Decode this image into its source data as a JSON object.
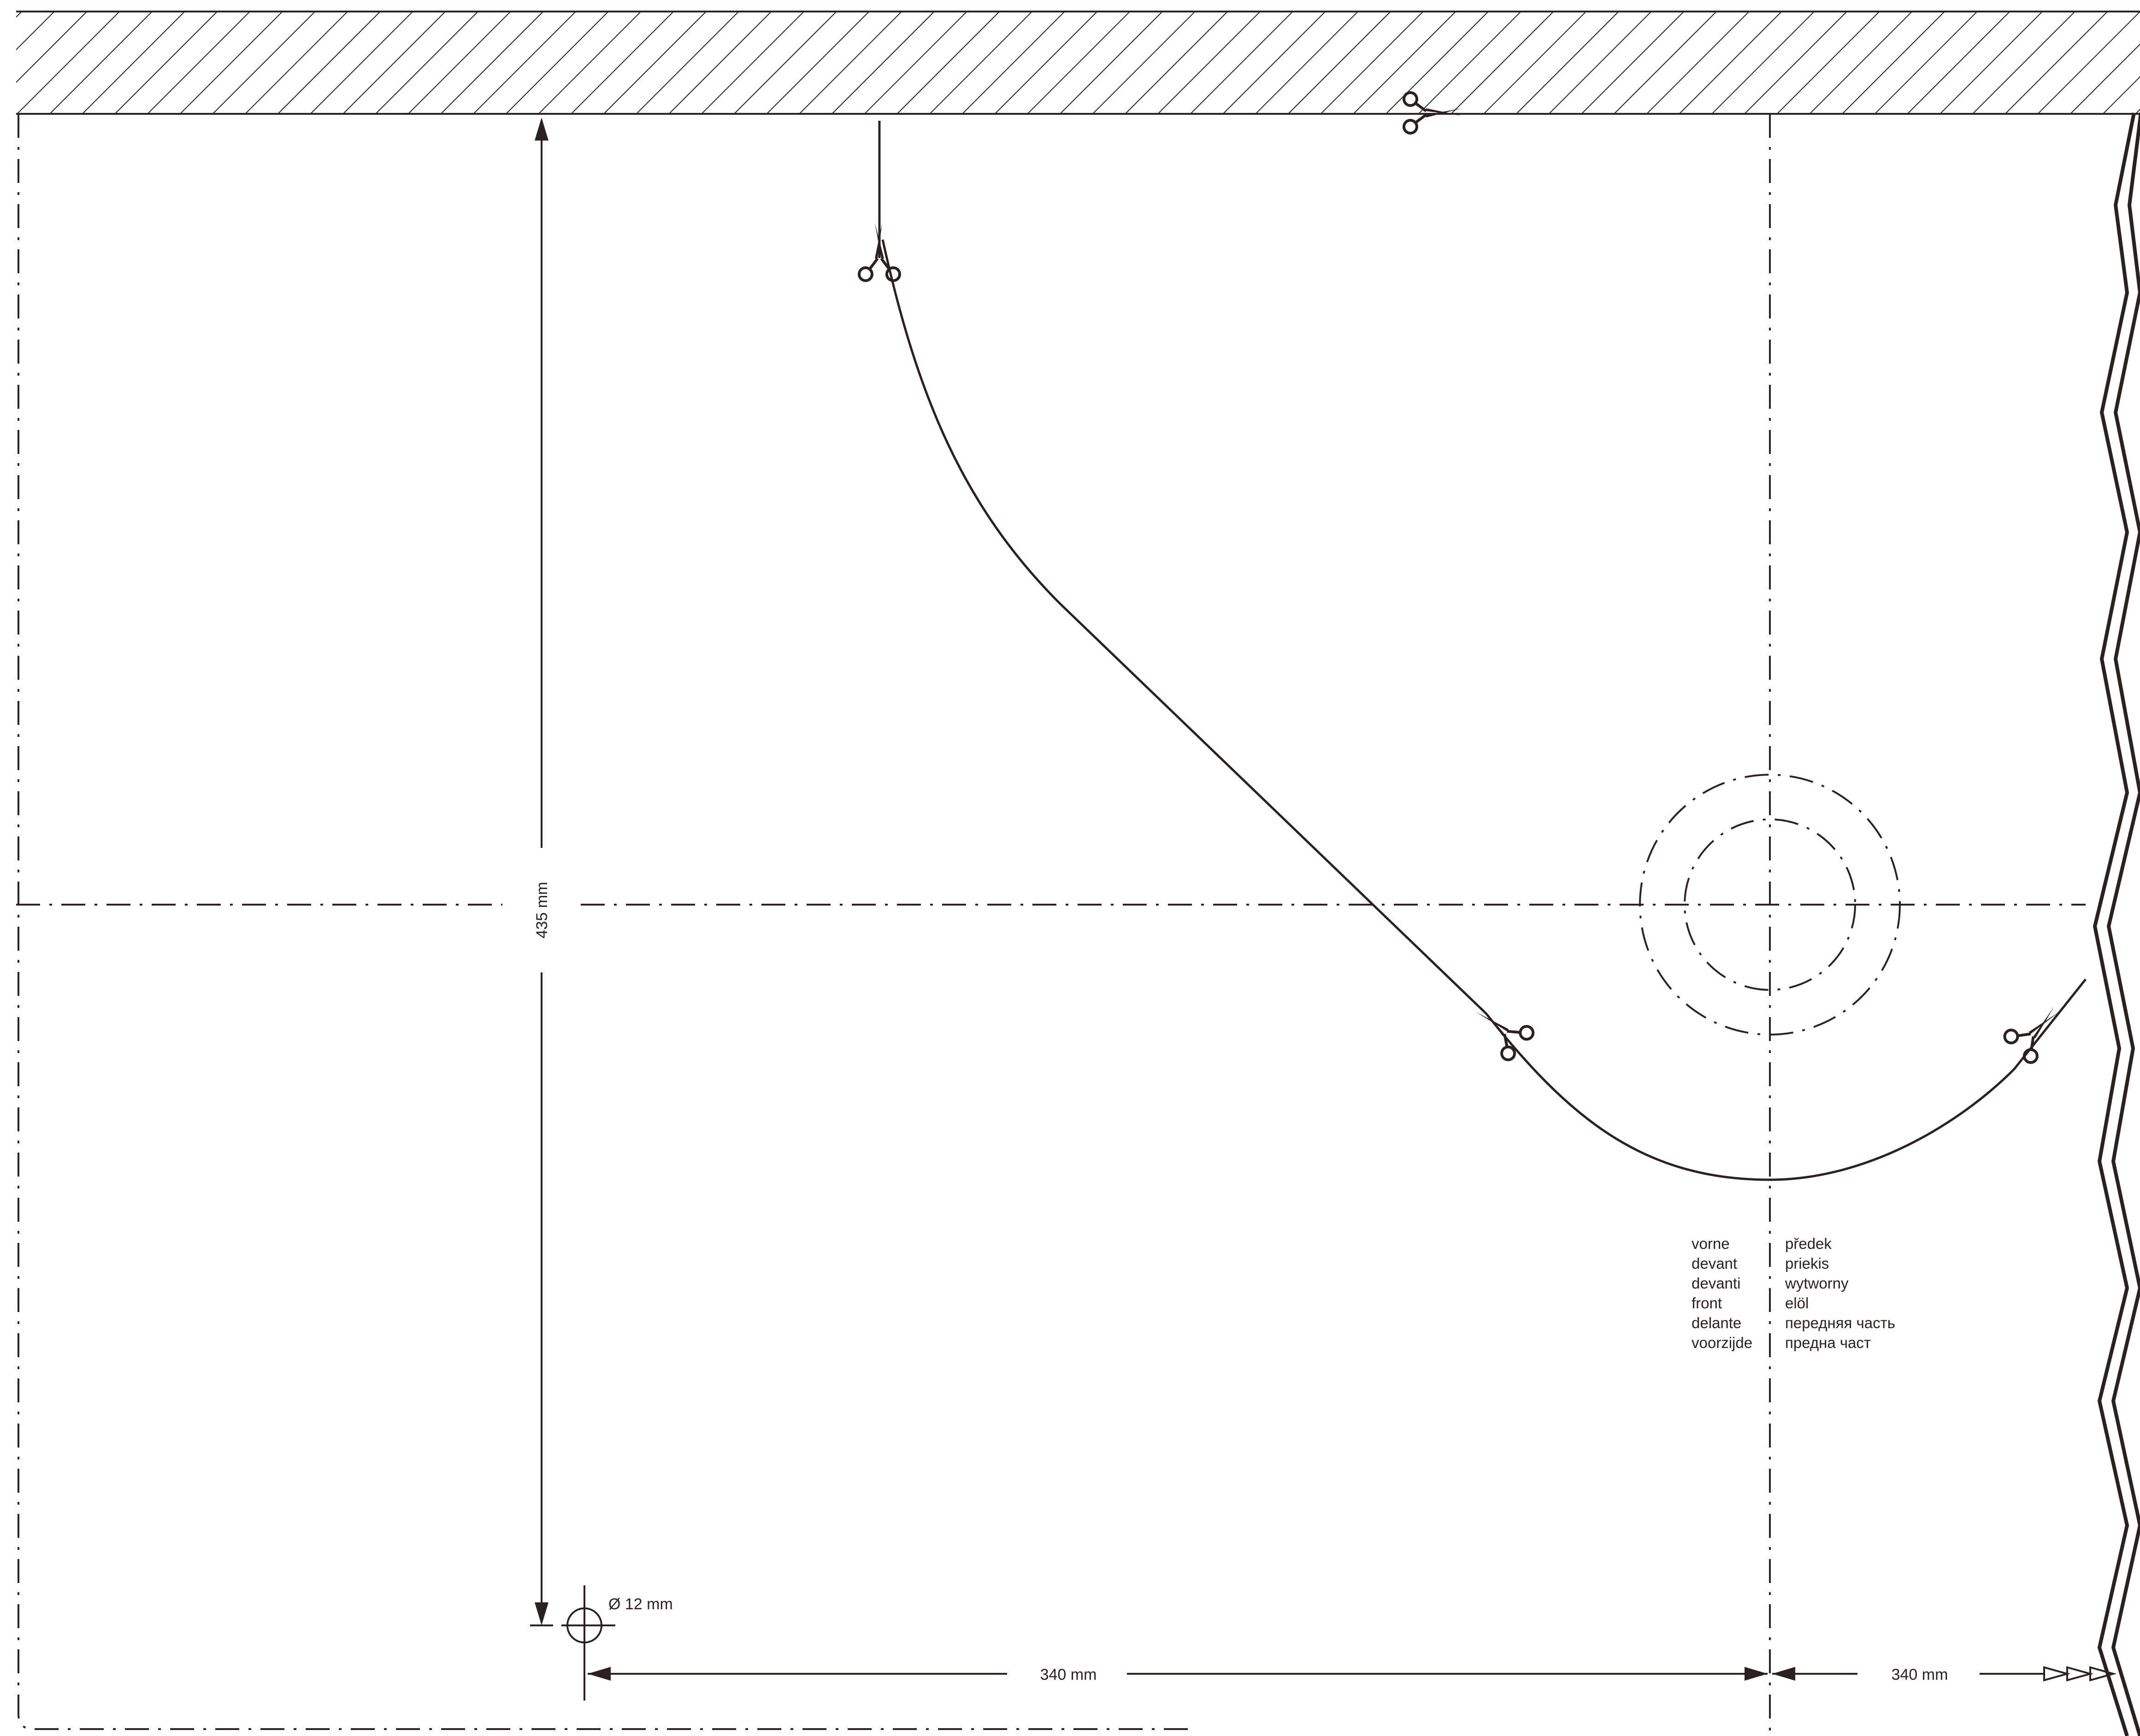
{
  "colors": {
    "ink": "#2a2120",
    "paper": "#ffffff"
  },
  "dimensions": {
    "height_label": "435 mm",
    "width_left_label": "340 mm",
    "width_right_label": "340 mm",
    "hole_label": "Ø 12 mm"
  },
  "labels": {
    "left": [
      "vorne",
      "devant",
      "devanti",
      "front",
      "delante",
      "voorzijde"
    ],
    "right": [
      "předek",
      "priekis",
      "wytworny",
      "elöl",
      "передняя часть",
      "предна част"
    ]
  },
  "icons": {
    "cut_marker": "scissors-icon",
    "hole_marker": "crosshair-circle-icon",
    "continuation_marker": "triple-arrow-icon"
  }
}
